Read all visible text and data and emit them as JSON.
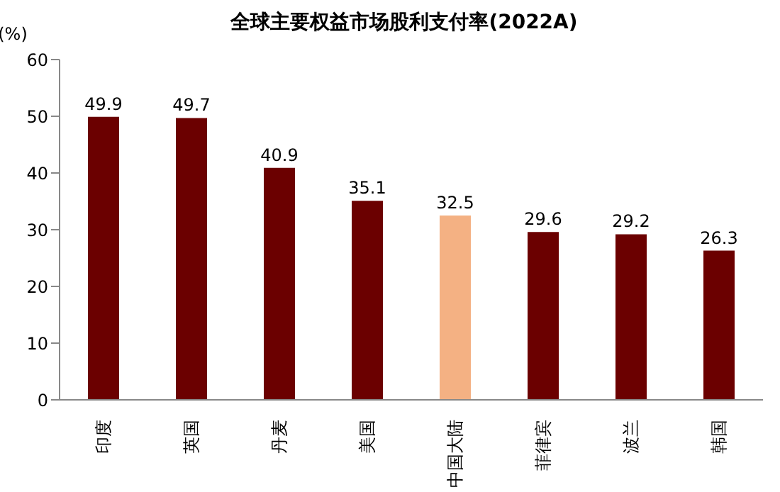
{
  "chart_data": {
    "type": "bar",
    "title": "全球主要权益市场股利支付率(2022A)",
    "ylabel": "(%)",
    "categories": [
      "印度",
      "英国",
      "丹麦",
      "美国",
      "中国大陆",
      "菲律宾",
      "波兰",
      "韩国"
    ],
    "values": [
      49.9,
      49.7,
      40.9,
      35.1,
      32.5,
      29.6,
      29.2,
      26.3
    ],
    "colors": [
      "#6b0000",
      "#6b0000",
      "#6b0000",
      "#6b0000",
      "#f4b183",
      "#6b0000",
      "#6b0000",
      "#6b0000"
    ],
    "ylim": [
      0,
      60
    ],
    "yticks": [
      0,
      10,
      20,
      30,
      40,
      50,
      60
    ],
    "grid": false,
    "legend": false,
    "data_labels": true
  }
}
